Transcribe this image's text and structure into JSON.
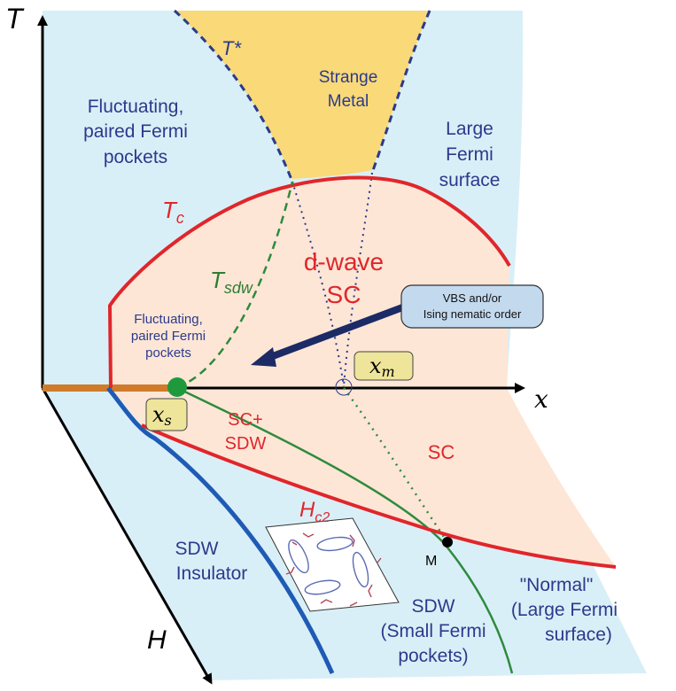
{
  "axes": {
    "t_axis": "T",
    "x_axis": "x",
    "h_axis": "H"
  },
  "lines": {
    "t_star": "T*",
    "t_c": "T",
    "t_c_sub": "c",
    "t_sdw": "T",
    "t_sdw_sub": "sdw",
    "h_c2": "H",
    "h_c2_sub": "c2"
  },
  "regions": {
    "strange_metal": [
      "Strange",
      "Metal"
    ],
    "fluct_upper": [
      "Fluctuating,",
      "paired Fermi",
      "pockets"
    ],
    "large_fermi": [
      "Large",
      "Fermi",
      "surface"
    ],
    "dwave": [
      "d-wave",
      "SC"
    ],
    "fluct_lower": [
      "Fluctuating,",
      "paired Fermi",
      "pockets"
    ],
    "sc_sdw": [
      "SC+",
      "SDW"
    ],
    "sc": "SC",
    "sdw_insulator": [
      "SDW",
      "Insulator"
    ],
    "sdw_small": [
      "SDW",
      "(Small Fermi",
      "pockets)"
    ],
    "normal": [
      "\"Normal\"",
      "(Large Fermi",
      "surface)"
    ]
  },
  "points": {
    "x_m_base": "x",
    "x_m_sub": "m",
    "x_s_base": "x",
    "x_s_sub": "s",
    "m_label": "M"
  },
  "callout": [
    "VBS and/or",
    "Ising nematic order"
  ],
  "colors": {
    "light_blue": "#d9eff7",
    "yellow": "#f9d978",
    "peach": "#fde6d6",
    "red": "#e0262b",
    "dark_blue": "#1f3a8a",
    "green": "#2e8b3e",
    "orange": "#cf7b2a",
    "navy_arrow": "#1c2a66",
    "callout_fill": "#c3d9ee",
    "label_fill": "#eee59a"
  }
}
